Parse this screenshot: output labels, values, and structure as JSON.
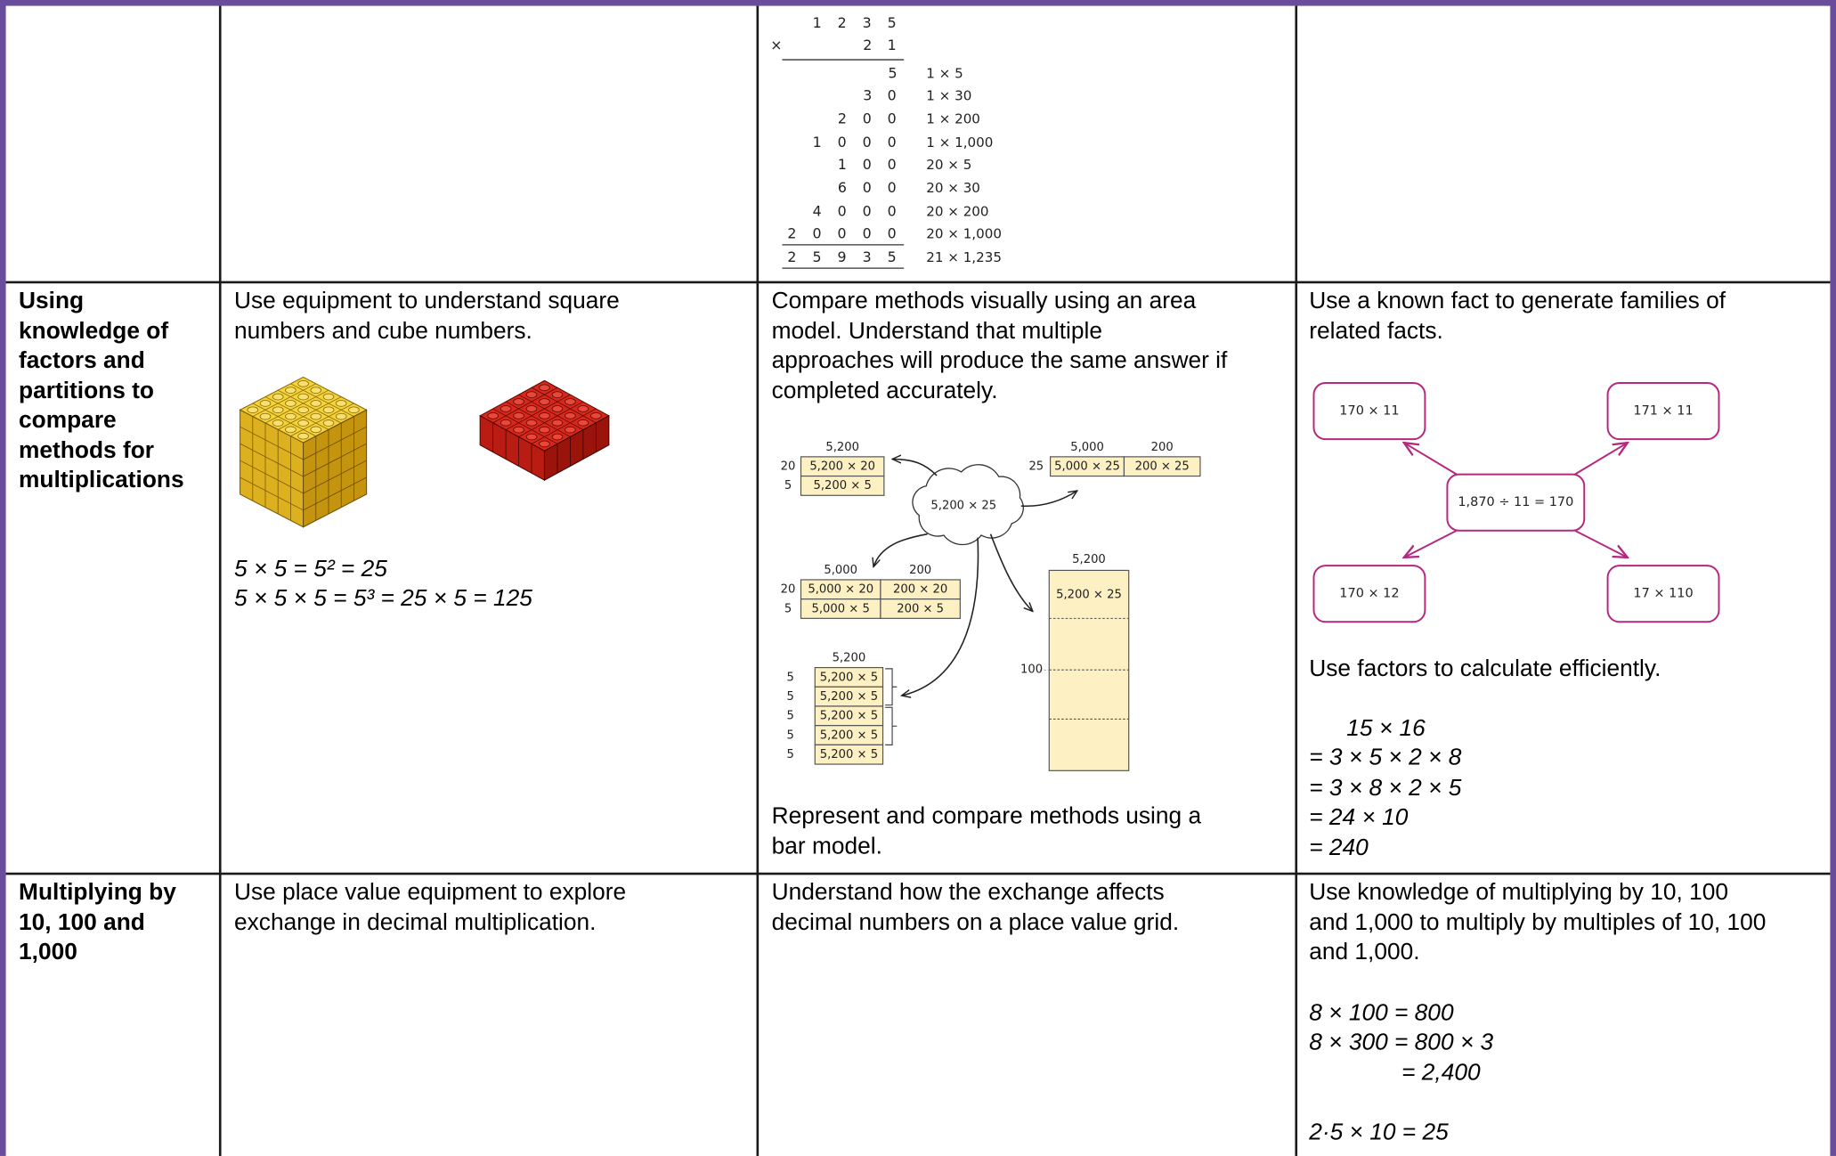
{
  "row_1": {
    "column_3": {
      "multiplicand": "1235",
      "multiplier_sign": "×",
      "multiplier": "21",
      "partials": [
        {
          "digits": "5",
          "note": "1 × 5"
        },
        {
          "digits": "30",
          "note": "1 × 30"
        },
        {
          "digits": "200",
          "note": "1 × 200"
        },
        {
          "digits": "1000",
          "note": "1 × 1,000"
        },
        {
          "digits": "100",
          "note": "20 × 5"
        },
        {
          "digits": "600",
          "note": "20 × 30"
        },
        {
          "digits": "4000",
          "note": "20 × 200"
        },
        {
          "digits": "20000",
          "note": "20 × 1,000"
        }
      ],
      "total": {
        "digits": "25935",
        "note": "21 × 1,235"
      }
    }
  },
  "row_2": {
    "heading": [
      "Using",
      "knowledge of",
      "factors and",
      "partitions to",
      "compare",
      "methods for",
      "multiplications"
    ],
    "column_2": {
      "text": [
        "Use equipment to understand square",
        "numbers and cube numbers."
      ],
      "equations": [
        "5 × 5 = 5² = 25",
        "5 × 5 × 5 = 5³ = 25 × 5 = 125"
      ]
    },
    "column_3": {
      "text": [
        "Compare methods visually using an area",
        "model. Understand that multiple",
        "approaches will produce the same answer if",
        "completed accurately."
      ],
      "area_models": {
        "cloud": "5,200 × 25",
        "model_a": {
          "columns": [
            "5,200"
          ],
          "rows": [
            {
              "label": "20",
              "cells": [
                "5,200 × 20"
              ]
            },
            {
              "label": "5",
              "cells": [
                "5,200 × 5"
              ]
            }
          ]
        },
        "model_b": {
          "columns": [
            "5,000",
            "200"
          ],
          "rows": [
            {
              "label": "25",
              "cells": [
                "5,000 × 25",
                "200 × 25"
              ]
            }
          ]
        },
        "model_c": {
          "columns": [
            "5,000",
            "200"
          ],
          "rows": [
            {
              "label": "20",
              "cells": [
                "5,000 × 20",
                "200 × 20"
              ]
            },
            {
              "label": "5",
              "cells": [
                "5,000 × 5",
                "200 × 5"
              ]
            }
          ]
        },
        "model_d": {
          "columns": [
            "5,200"
          ],
          "rows": [
            {
              "label": "5",
              "cells": [
                "5,200 × 5"
              ]
            },
            {
              "label": "5",
              "cells": [
                "5,200 × 5"
              ]
            },
            {
              "label": "5",
              "cells": [
                "5,200 × 5"
              ]
            },
            {
              "label": "5",
              "cells": [
                "5,200 × 5"
              ]
            },
            {
              "label": "5",
              "cells": [
                "5,200 × 5"
              ]
            }
          ]
        },
        "bar": {
          "header": "5,200",
          "top": "5,200 × 25",
          "side": "100"
        }
      },
      "caption": [
        "Represent and compare methods using a",
        "bar model."
      ]
    },
    "column_4": {
      "text": [
        "Use a known fact to generate families of",
        "related facts."
      ],
      "fact_family": {
        "center": "1,870 ÷ 11 = 170",
        "related": [
          "170 × 11",
          "171 × 11",
          "170 × 12",
          "17 × 110"
        ]
      },
      "text_2": [
        "Use factors to calculate efficiently."
      ],
      "working": [
        "15 × 16",
        "= 3 × 5 × 2 × 8",
        "= 3 × 8 × 2 × 5",
        "= 24 × 10",
        "= 240"
      ]
    }
  },
  "row_3": {
    "heading": [
      "Multiplying by",
      "10, 100 and",
      "1,000"
    ],
    "column_2": {
      "text": [
        "Use place value equipment to explore",
        "exchange in decimal multiplication."
      ]
    },
    "column_3": {
      "text": [
        "Understand how the exchange affects",
        "decimal numbers on a place value grid."
      ]
    },
    "column_4": {
      "text": [
        "Use knowledge of multiplying by 10, 100",
        "and 1,000 to multiply by multiples of 10, 100",
        "and 1,000."
      ],
      "equations": [
        "8 × 100 = 800",
        "8 × 300 = 800 × 3",
        "= 2,400",
        "2·5 × 10 = 25"
      ]
    }
  }
}
